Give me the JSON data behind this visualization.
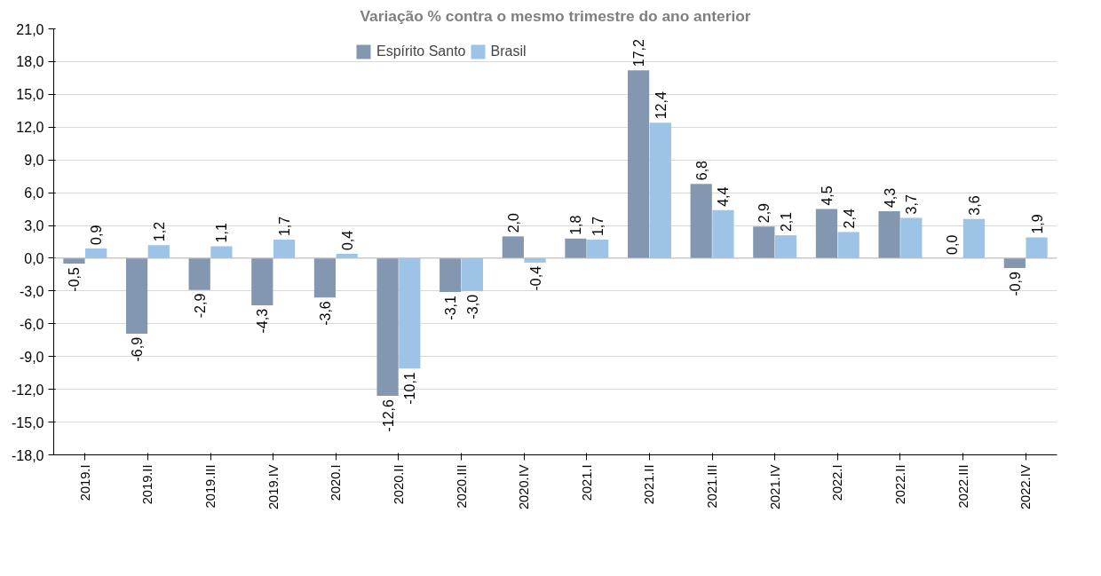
{
  "chart_data": {
    "type": "bar",
    "title": "Variação % contra o mesmo trimestre do ano anterior",
    "categories": [
      "2019.I",
      "2019.II",
      "2019.III",
      "2019.IV",
      "2020.I",
      "2020.II",
      "2020.III",
      "2020.IV",
      "2021.I",
      "2021.II",
      "2021.III",
      "2021.IV",
      "2022.I",
      "2022.II",
      "2022.III",
      "2022.IV"
    ],
    "series": [
      {
        "name": "Espírito Santo",
        "color": "#8497b0",
        "values": [
          -0.5,
          -6.9,
          -2.9,
          -4.3,
          -3.6,
          -12.6,
          -3.1,
          2.0,
          1.8,
          17.2,
          6.8,
          2.9,
          4.5,
          4.3,
          0.0,
          -0.9
        ],
        "value_labels": [
          "-0,5",
          "-6,9",
          "-2,9",
          "-4,3",
          "-3,6",
          "-12,6",
          "-3,1",
          "2,0",
          "1,8",
          "17,2",
          "6,8",
          "2,9",
          "4,5",
          "4,3",
          "0,0",
          "-0,9"
        ]
      },
      {
        "name": "Brasil",
        "color": "#9dc3e6",
        "values": [
          0.9,
          1.2,
          1.1,
          1.7,
          0.4,
          -10.1,
          -3.0,
          -0.4,
          1.7,
          12.4,
          4.4,
          2.1,
          2.4,
          3.7,
          3.6,
          1.9
        ],
        "value_labels": [
          "0,9",
          "1,2",
          "1,1",
          "1,7",
          "0,4",
          "-10,1",
          "-3,0",
          "-0,4",
          "1,7",
          "12,4",
          "4,4",
          "2,1",
          "2,4",
          "3,7",
          "3,6",
          "1,9"
        ]
      }
    ],
    "ylim": [
      -18,
      21
    ],
    "yticks": [
      {
        "value": -18,
        "label": "-18,0"
      },
      {
        "value": -15,
        "label": "-15,0"
      },
      {
        "value": -12,
        "label": "-12,0"
      },
      {
        "value": -9,
        "label": "-9,0"
      },
      {
        "value": -6,
        "label": "-6,0"
      },
      {
        "value": -3,
        "label": "-3,0"
      },
      {
        "value": 0,
        "label": "0,0"
      },
      {
        "value": 3,
        "label": "3,0"
      },
      {
        "value": 6,
        "label": "6,0"
      },
      {
        "value": 9,
        "label": "9,0"
      },
      {
        "value": 12,
        "label": "12,0"
      },
      {
        "value": 15,
        "label": "15,0"
      },
      {
        "value": 18,
        "label": "18,0"
      },
      {
        "value": 21,
        "label": "21,0"
      }
    ],
    "grid": "y",
    "legend": "top"
  }
}
